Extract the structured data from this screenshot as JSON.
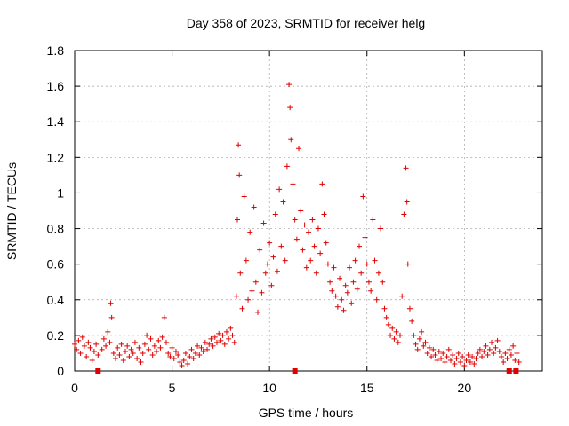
{
  "chart_data": {
    "type": "scatter",
    "title": "Day 358 of 2023, SRMTID for receiver helg",
    "xlabel": "GPS time / hours",
    "ylabel": "SRMTID / TECUs",
    "xlim": [
      0,
      24
    ],
    "ylim": [
      0,
      1.8
    ],
    "x_ticks": [
      0,
      5,
      10,
      15,
      20
    ],
    "x_tick_labels": [
      "0",
      "5",
      "10",
      "15",
      "20"
    ],
    "y_ticks": [
      0,
      0.2,
      0.4,
      0.6,
      0.8,
      1.0,
      1.2,
      1.4,
      1.6,
      1.8
    ],
    "y_tick_labels": [
      "0",
      "0.2",
      "0.4",
      "0.6",
      "0.8",
      "1",
      "1.2",
      "1.4",
      "1.6",
      "1.8"
    ],
    "grid": true,
    "marker": "plus",
    "color": "#e00000",
    "series": [
      {
        "name": "SRMTID",
        "points": [
          [
            0.0,
            0.15
          ],
          [
            0.1,
            0.12
          ],
          [
            0.2,
            0.17
          ],
          [
            0.3,
            0.1
          ],
          [
            0.4,
            0.19
          ],
          [
            0.5,
            0.14
          ],
          [
            0.6,
            0.08
          ],
          [
            0.7,
            0.16
          ],
          [
            0.8,
            0.13
          ],
          [
            0.9,
            0.06
          ],
          [
            1.0,
            0.11
          ],
          [
            1.1,
            0.15
          ],
          [
            1.2,
            0.09
          ],
          [
            1.4,
            0.12
          ],
          [
            1.5,
            0.18
          ],
          [
            1.6,
            0.14
          ],
          [
            1.7,
            0.22
          ],
          [
            1.8,
            0.16
          ],
          [
            1.85,
            0.38
          ],
          [
            1.9,
            0.3
          ],
          [
            2.0,
            0.1
          ],
          [
            2.1,
            0.07
          ],
          [
            2.2,
            0.13
          ],
          [
            2.3,
            0.09
          ],
          [
            2.4,
            0.15
          ],
          [
            2.5,
            0.06
          ],
          [
            2.6,
            0.11
          ],
          [
            2.7,
            0.14
          ],
          [
            2.8,
            0.08
          ],
          [
            2.9,
            0.12
          ],
          [
            3.0,
            0.1
          ],
          [
            3.1,
            0.16
          ],
          [
            3.2,
            0.07
          ],
          [
            3.3,
            0.13
          ],
          [
            3.4,
            0.05
          ],
          [
            3.5,
            0.1
          ],
          [
            3.6,
            0.15
          ],
          [
            3.7,
            0.2
          ],
          [
            3.8,
            0.12
          ],
          [
            3.9,
            0.18
          ],
          [
            4.0,
            0.09
          ],
          [
            4.1,
            0.14
          ],
          [
            4.2,
            0.11
          ],
          [
            4.3,
            0.17
          ],
          [
            4.4,
            0.13
          ],
          [
            4.5,
            0.19
          ],
          [
            4.6,
            0.3
          ],
          [
            4.7,
            0.16
          ],
          [
            4.8,
            0.1
          ],
          [
            4.9,
            0.08
          ],
          [
            5.0,
            0.13
          ],
          [
            5.1,
            0.07
          ],
          [
            5.2,
            0.11
          ],
          [
            5.3,
            0.09
          ],
          [
            5.4,
            0.05
          ],
          [
            5.5,
            0.03
          ],
          [
            5.6,
            0.06
          ],
          [
            5.7,
            0.1
          ],
          [
            5.8,
            0.04
          ],
          [
            5.9,
            0.08
          ],
          [
            6.0,
            0.12
          ],
          [
            6.1,
            0.07
          ],
          [
            6.2,
            0.1
          ],
          [
            6.3,
            0.14
          ],
          [
            6.4,
            0.09
          ],
          [
            6.5,
            0.13
          ],
          [
            6.6,
            0.11
          ],
          [
            6.7,
            0.16
          ],
          [
            6.8,
            0.12
          ],
          [
            6.9,
            0.15
          ],
          [
            7.0,
            0.18
          ],
          [
            7.1,
            0.14
          ],
          [
            7.2,
            0.19
          ],
          [
            7.3,
            0.16
          ],
          [
            7.4,
            0.21
          ],
          [
            7.5,
            0.17
          ],
          [
            7.6,
            0.2
          ],
          [
            7.7,
            0.15
          ],
          [
            7.8,
            0.22
          ],
          [
            7.9,
            0.18
          ],
          [
            8.0,
            0.24
          ],
          [
            8.1,
            0.2
          ],
          [
            8.2,
            0.16
          ],
          [
            8.3,
            0.42
          ],
          [
            8.35,
            0.85
          ],
          [
            8.4,
            1.27
          ],
          [
            8.45,
            1.1
          ],
          [
            8.5,
            0.55
          ],
          [
            8.6,
            0.35
          ],
          [
            8.7,
            0.98
          ],
          [
            8.8,
            0.62
          ],
          [
            8.9,
            0.4
          ],
          [
            9.0,
            0.78
          ],
          [
            9.1,
            0.45
          ],
          [
            9.2,
            0.92
          ],
          [
            9.3,
            0.5
          ],
          [
            9.4,
            0.33
          ],
          [
            9.5,
            0.68
          ],
          [
            9.6,
            0.44
          ],
          [
            9.7,
            0.83
          ],
          [
            9.8,
            0.55
          ],
          [
            9.9,
            0.6
          ],
          [
            10.0,
            0.72
          ],
          [
            10.1,
            0.48
          ],
          [
            10.2,
            0.64
          ],
          [
            10.3,
            0.88
          ],
          [
            10.4,
            0.56
          ],
          [
            10.5,
            1.02
          ],
          [
            10.6,
            0.7
          ],
          [
            10.7,
            0.95
          ],
          [
            10.8,
            0.62
          ],
          [
            10.9,
            1.15
          ],
          [
            11.0,
            1.61
          ],
          [
            11.05,
            1.48
          ],
          [
            11.1,
            1.3
          ],
          [
            11.2,
            1.05
          ],
          [
            11.3,
            0.85
          ],
          [
            11.4,
            0.74
          ],
          [
            11.5,
            1.25
          ],
          [
            11.6,
            0.9
          ],
          [
            11.7,
            0.68
          ],
          [
            11.8,
            0.82
          ],
          [
            11.9,
            0.58
          ],
          [
            12.0,
            0.78
          ],
          [
            12.1,
            0.62
          ],
          [
            12.2,
            0.85
          ],
          [
            12.3,
            0.7
          ],
          [
            12.4,
            0.55
          ],
          [
            12.5,
            0.8
          ],
          [
            12.6,
            0.66
          ],
          [
            12.7,
            1.05
          ],
          [
            12.8,
            0.88
          ],
          [
            12.9,
            0.72
          ],
          [
            13.0,
            0.6
          ],
          [
            13.1,
            0.5
          ],
          [
            13.2,
            0.45
          ],
          [
            13.3,
            0.58
          ],
          [
            13.4,
            0.42
          ],
          [
            13.5,
            0.36
          ],
          [
            13.6,
            0.52
          ],
          [
            13.7,
            0.4
          ],
          [
            13.8,
            0.34
          ],
          [
            13.9,
            0.48
          ],
          [
            14.0,
            0.44
          ],
          [
            14.1,
            0.58
          ],
          [
            14.2,
            0.38
          ],
          [
            14.3,
            0.5
          ],
          [
            14.4,
            0.62
          ],
          [
            14.5,
            0.46
          ],
          [
            14.6,
            0.7
          ],
          [
            14.7,
            0.55
          ],
          [
            14.8,
            0.98
          ],
          [
            14.9,
            0.75
          ],
          [
            15.0,
            0.6
          ],
          [
            15.1,
            0.5
          ],
          [
            15.2,
            0.45
          ],
          [
            15.3,
            0.85
          ],
          [
            15.4,
            0.62
          ],
          [
            15.5,
            0.4
          ],
          [
            15.6,
            0.55
          ],
          [
            15.7,
            0.8
          ],
          [
            15.8,
            0.5
          ],
          [
            15.9,
            0.35
          ],
          [
            16.0,
            0.3
          ],
          [
            16.1,
            0.26
          ],
          [
            16.2,
            0.2
          ],
          [
            16.3,
            0.24
          ],
          [
            16.4,
            0.18
          ],
          [
            16.5,
            0.22
          ],
          [
            16.6,
            0.16
          ],
          [
            16.7,
            0.2
          ],
          [
            16.8,
            0.42
          ],
          [
            16.9,
            0.88
          ],
          [
            17.0,
            1.14
          ],
          [
            17.05,
            0.95
          ],
          [
            17.1,
            0.6
          ],
          [
            17.2,
            0.35
          ],
          [
            17.3,
            0.28
          ],
          [
            17.4,
            0.2
          ],
          [
            17.5,
            0.15
          ],
          [
            17.6,
            0.12
          ],
          [
            17.7,
            0.18
          ],
          [
            17.8,
            0.22
          ],
          [
            17.9,
            0.14
          ],
          [
            18.0,
            0.16
          ],
          [
            18.1,
            0.1
          ],
          [
            18.2,
            0.13
          ],
          [
            18.3,
            0.08
          ],
          [
            18.4,
            0.12
          ],
          [
            18.5,
            0.09
          ],
          [
            18.6,
            0.06
          ],
          [
            18.7,
            0.11
          ],
          [
            18.8,
            0.07
          ],
          [
            18.9,
            0.1
          ],
          [
            19.0,
            0.05
          ],
          [
            19.1,
            0.08
          ],
          [
            19.2,
            0.12
          ],
          [
            19.3,
            0.06
          ],
          [
            19.4,
            0.09
          ],
          [
            19.5,
            0.04
          ],
          [
            19.6,
            0.07
          ],
          [
            19.7,
            0.1
          ],
          [
            19.8,
            0.05
          ],
          [
            19.9,
            0.08
          ],
          [
            20.0,
            0.03
          ],
          [
            20.1,
            0.06
          ],
          [
            20.2,
            0.09
          ],
          [
            20.3,
            0.05
          ],
          [
            20.4,
            0.08
          ],
          [
            20.5,
            0.04
          ],
          [
            20.6,
            0.07
          ],
          [
            20.7,
            0.1
          ],
          [
            20.8,
            0.12
          ],
          [
            20.9,
            0.08
          ],
          [
            21.0,
            0.11
          ],
          [
            21.1,
            0.14
          ],
          [
            21.2,
            0.09
          ],
          [
            21.3,
            0.12
          ],
          [
            21.4,
            0.16
          ],
          [
            21.5,
            0.1
          ],
          [
            21.6,
            0.13
          ],
          [
            21.7,
            0.17
          ],
          [
            21.8,
            0.11
          ],
          [
            21.9,
            0.08
          ],
          [
            22.0,
            0.05
          ],
          [
            22.1,
            0.1
          ],
          [
            22.2,
            0.07
          ],
          [
            22.3,
            0.12
          ],
          [
            22.4,
            0.09
          ],
          [
            22.5,
            0.14
          ],
          [
            22.6,
            0.06
          ],
          [
            22.7,
            0.1
          ],
          [
            22.8,
            0.05
          ]
        ]
      }
    ],
    "baseline_markers_x": [
      1.2,
      11.3,
      22.3,
      22.65
    ]
  }
}
